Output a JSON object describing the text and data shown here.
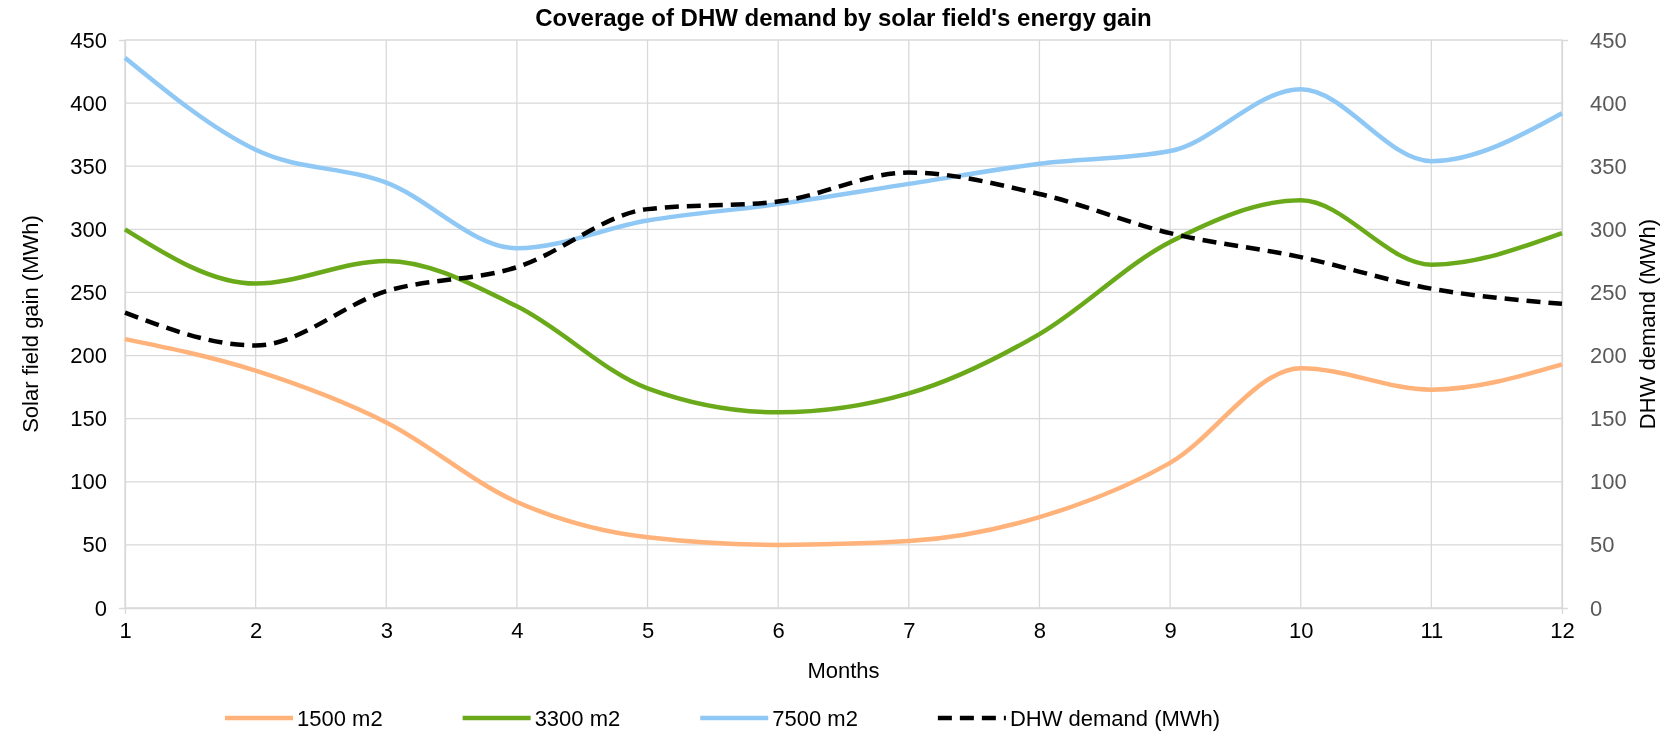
{
  "chart_data": {
    "type": "line",
    "title": "Coverage of DHW demand by solar field's energy gain",
    "xlabel": "Months",
    "ylabel": "Solar field gain (MWh)",
    "y2label": "DHW demand (MWh)",
    "x": [
      1,
      2,
      3,
      4,
      5,
      6,
      7,
      8,
      9,
      10,
      11,
      12
    ],
    "xlim": [
      1,
      12
    ],
    "xticks": [
      1,
      2,
      3,
      4,
      5,
      6,
      7,
      8,
      9,
      10,
      11,
      12
    ],
    "ylim": [
      0,
      450
    ],
    "yticks": [
      0,
      50,
      100,
      150,
      200,
      250,
      300,
      350,
      400,
      450
    ],
    "y2lim": [
      0,
      450
    ],
    "y2ticks": [
      0,
      50,
      100,
      150,
      200,
      250,
      300,
      350,
      400,
      450
    ],
    "grid": true,
    "legend": "bottom",
    "marker": "none",
    "series": [
      {
        "name": "1500 m2",
        "color": "#ffb27a",
        "values": [
          213,
          188,
          147,
          84,
          56,
          50,
          53,
          72,
          115,
          190,
          173,
          193
        ]
      },
      {
        "name": "3300 m2",
        "color": "#6aaa1a",
        "values": [
          300,
          257,
          275,
          239,
          174,
          155,
          170,
          217,
          290,
          323,
          272,
          297
        ]
      },
      {
        "name": "7500 m2",
        "color": "#8fc8f5",
        "values": [
          436,
          363,
          337,
          285,
          307,
          320,
          336,
          352,
          362,
          411,
          354,
          392
        ]
      },
      {
        "name": "DHW demand (MWh)",
        "color": "#000000",
        "axis": "y2",
        "line_style": "dashed",
        "values": [
          234,
          208,
          251,
          270,
          316,
          322,
          345,
          328,
          297,
          278,
          253,
          241
        ]
      }
    ]
  }
}
